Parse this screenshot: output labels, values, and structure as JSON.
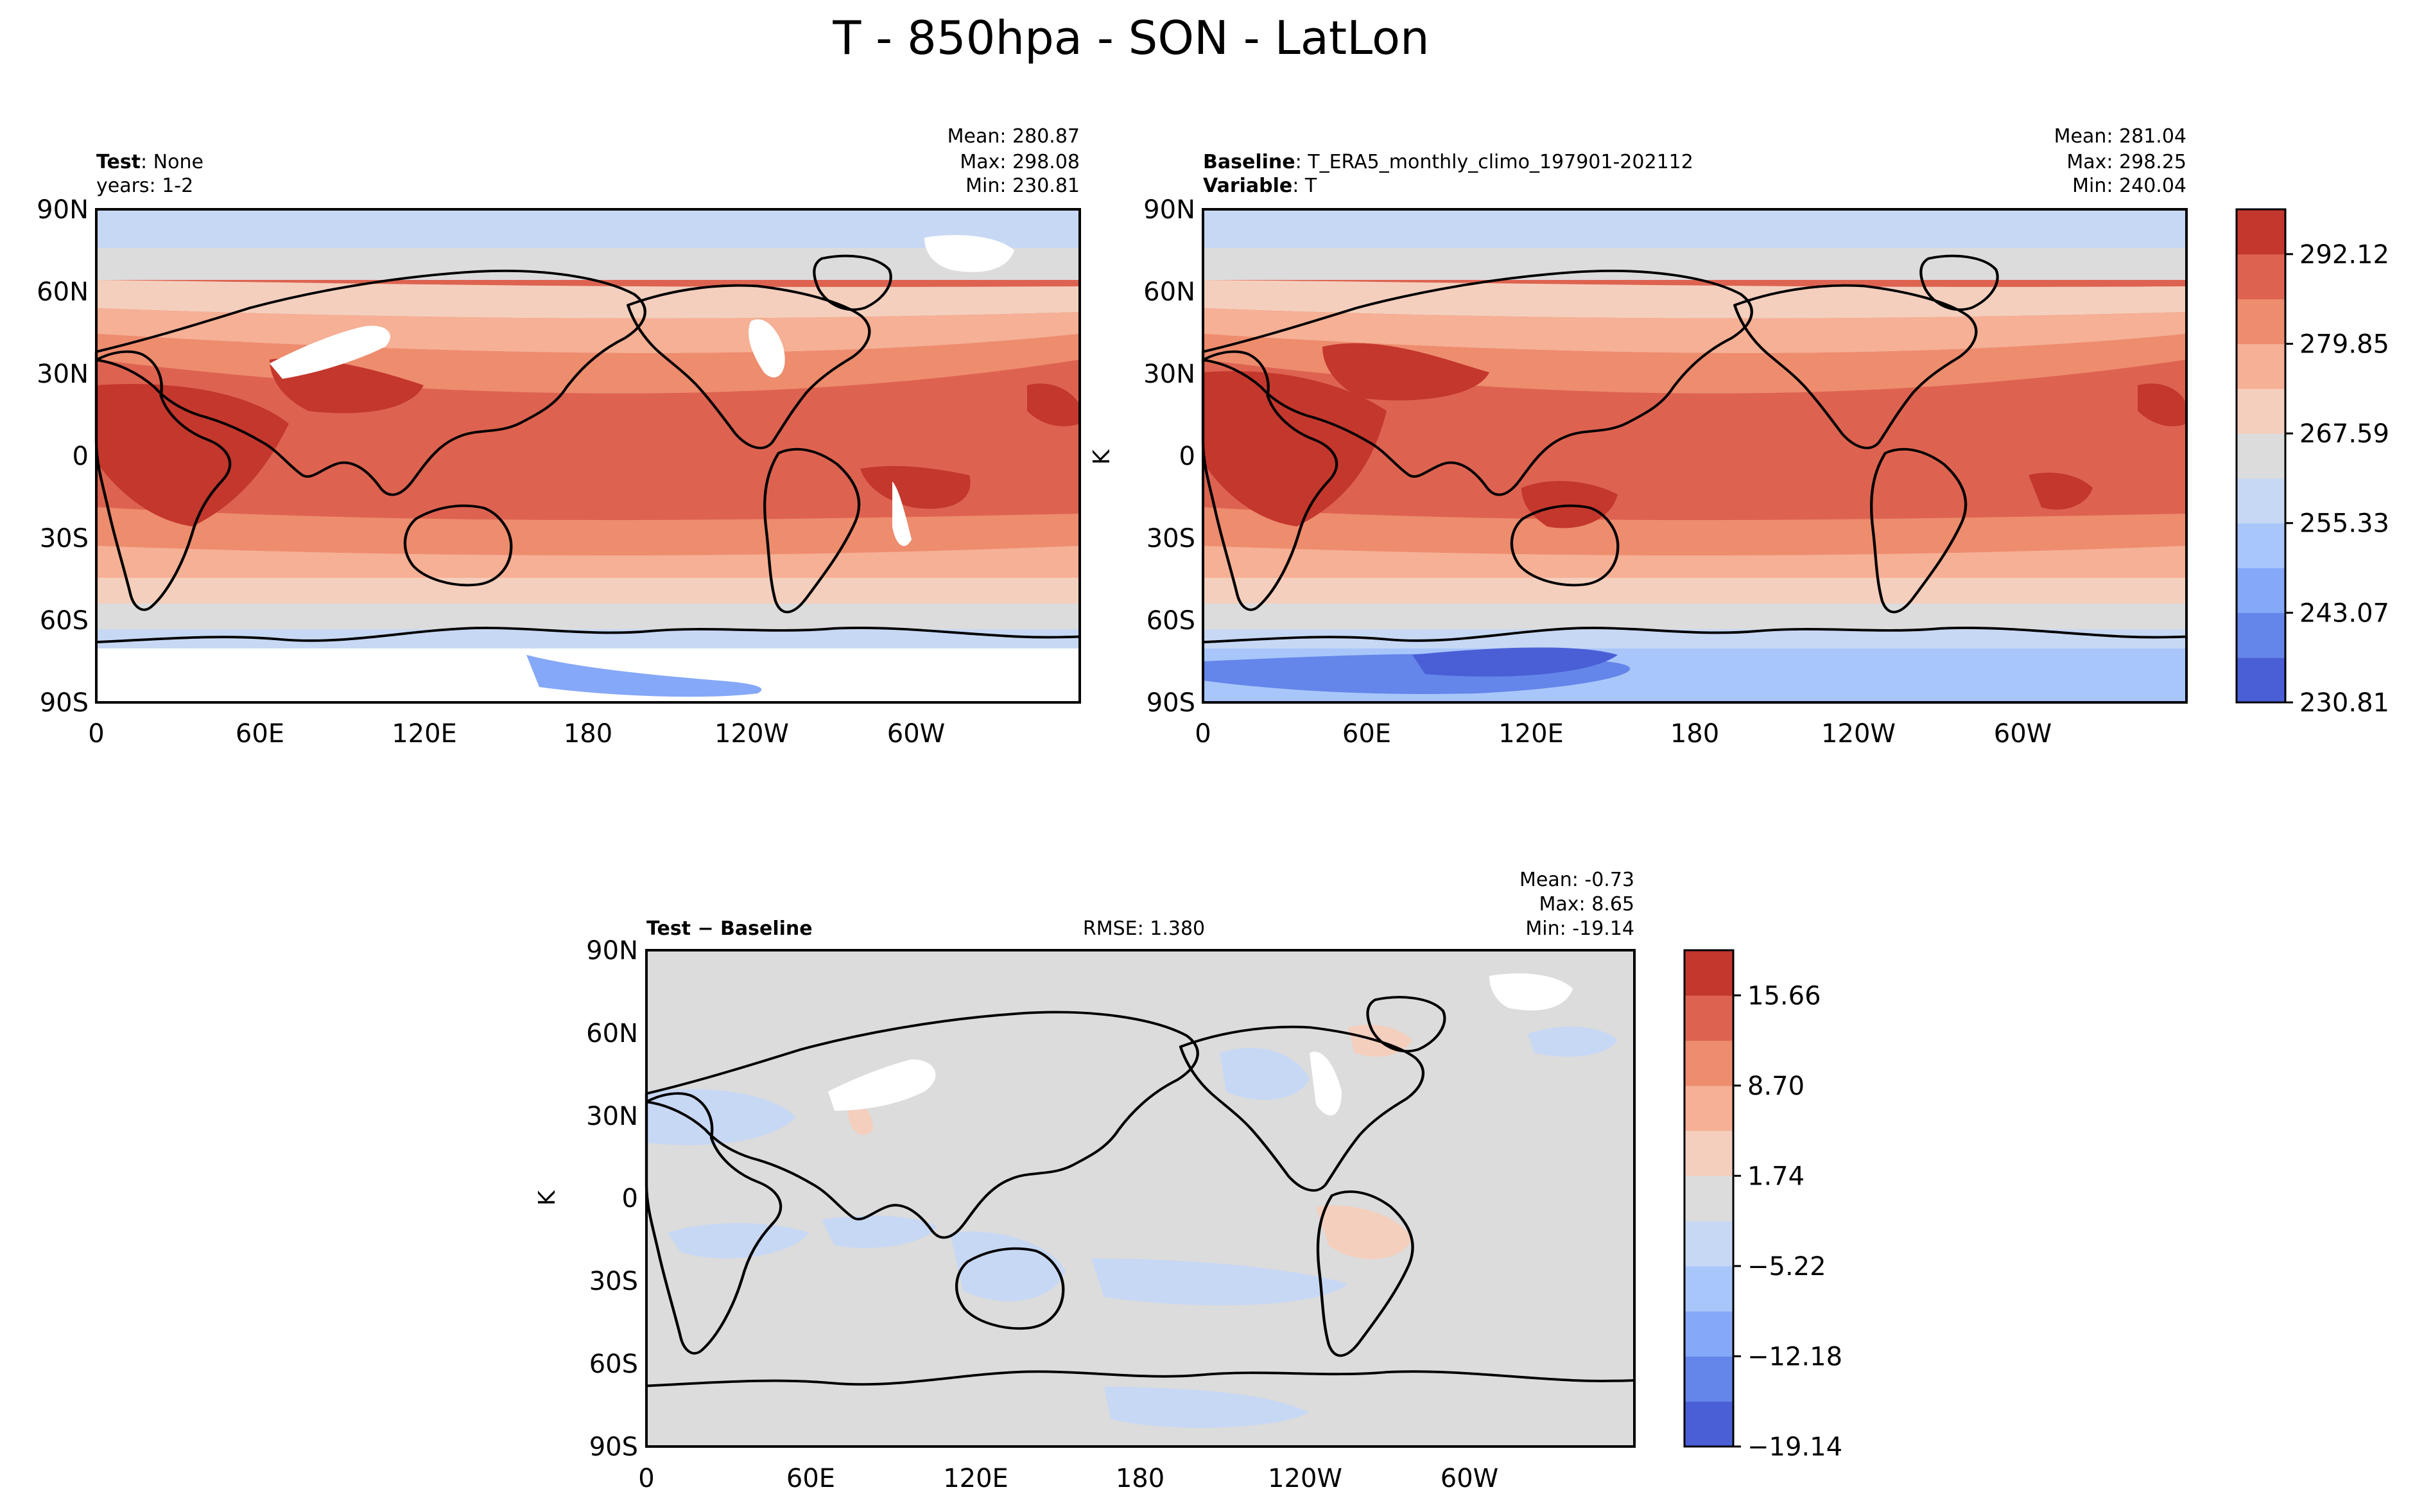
{
  "figure": {
    "title": "T - 850hpa - SON - LatLon"
  },
  "chart_data": [
    {
      "type": "heatmap",
      "panel": "test",
      "label_bold": "Test",
      "label_value": ": None",
      "label_line2": "years: 1-2",
      "stats": {
        "mean": "Mean: 280.87",
        "max": "Max: 298.08",
        "min": "Min: 230.81"
      },
      "xticks": [
        "0",
        "60E",
        "120E",
        "180",
        "120W",
        "60W"
      ],
      "yticks": [
        "90N",
        "60N",
        "30N",
        "0",
        "30S",
        "60S",
        "90S"
      ],
      "colorbar": "shared"
    },
    {
      "type": "heatmap",
      "panel": "baseline",
      "label_bold": "Baseline",
      "label_value": ": T_ERA5_monthly_climo_197901-202112",
      "label_bold2": "Variable",
      "label_value2": ": T",
      "stats": {
        "mean": "Mean: 281.04",
        "max": "Max: 298.25",
        "min": "Min: 240.04"
      },
      "xticks": [
        "0",
        "60E",
        "120E",
        "180",
        "120W",
        "60W"
      ],
      "yticks": [
        "90N",
        "60N",
        "30N",
        "0",
        "30S",
        "60S",
        "90S"
      ],
      "ylabel": "K",
      "colorbar": {
        "ticks": [
          "292.12",
          "279.85",
          "267.59",
          "255.33",
          "243.07",
          "230.81"
        ],
        "levels_from_bottom": [
          "#4a5fd6",
          "#6486ea",
          "#86a8f8",
          "#a9c6fb",
          "#c7d8f4",
          "#dcdcdc",
          "#f4cfbe",
          "#f6b095",
          "#ee8c6e",
          "#dd6350",
          "#c4372d"
        ]
      }
    },
    {
      "type": "heatmap",
      "panel": "difference",
      "label_bold": "Test − Baseline",
      "rmse": "RMSE: 1.380",
      "stats": {
        "mean": "Mean: -0.73",
        "max": "Max:  8.65",
        "min": "Min: -19.14"
      },
      "xticks": [
        "0",
        "60E",
        "120E",
        "180",
        "120W",
        "60W"
      ],
      "yticks": [
        "90N",
        "60N",
        "30N",
        "0",
        "30S",
        "60S",
        "90S"
      ],
      "ylabel": "K",
      "colorbar": {
        "ticks": [
          "15.66",
          "8.70",
          "1.74",
          "−5.22",
          "−12.18",
          "−19.14"
        ],
        "levels_from_bottom": [
          "#4a5fd6",
          "#6486ea",
          "#86a8f8",
          "#a9c6fb",
          "#c7d8f4",
          "#dcdcdc",
          "#f4cfbe",
          "#f6b095",
          "#ee8c6e",
          "#dd6350",
          "#c4372d"
        ]
      }
    }
  ]
}
